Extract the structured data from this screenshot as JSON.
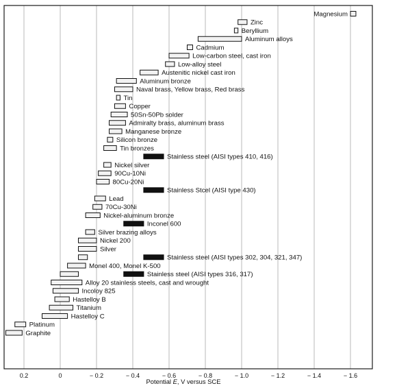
{
  "chart_data": {
    "type": "range-bar",
    "title": "",
    "xlabel_parts": [
      "Potential ",
      "E",
      ", V versus SCE"
    ],
    "x_direction": "more negative to the right",
    "xlim": [
      0.3,
      -1.7
    ],
    "x_ticks": [
      {
        "value": 0.2,
        "label": "0.2"
      },
      {
        "value": 0,
        "label": "0"
      },
      {
        "value": -0.2,
        "label": "− 0.2"
      },
      {
        "value": -0.4,
        "label": "− 0.4"
      },
      {
        "value": -0.6,
        "label": "− 0.6"
      },
      {
        "value": -0.8,
        "label": "− 0.8"
      },
      {
        "value": -1.0,
        "label": "− 1.0"
      },
      {
        "value": -1.2,
        "label": "− 1.2"
      },
      {
        "value": -1.4,
        "label": "− 1.4"
      },
      {
        "value": -1.6,
        "label": "− 1.6"
      }
    ],
    "grid": true,
    "series": [
      {
        "name": "Magnesium",
        "range": [
          -1.6,
          -1.63
        ],
        "style": "open",
        "label_side": "left"
      },
      {
        "name": "Zinc",
        "range": [
          -0.98,
          -1.03
        ],
        "style": "open"
      },
      {
        "name": "Beryllium",
        "range": [
          -0.96,
          -0.98
        ],
        "style": "open"
      },
      {
        "name": "Aluminum alloys",
        "range": [
          -0.76,
          -1.0
        ],
        "style": "open"
      },
      {
        "name": "Cadmium",
        "range": [
          -0.7,
          -0.73
        ],
        "style": "open"
      },
      {
        "name": "Low-carbon steel, cast iron",
        "range": [
          -0.6,
          -0.71
        ],
        "style": "open"
      },
      {
        "name": "Low-alloy steel",
        "range": [
          -0.58,
          -0.63
        ],
        "style": "open"
      },
      {
        "name": "Austenitic nickel cast iron",
        "range": [
          -0.44,
          -0.54
        ],
        "style": "open"
      },
      {
        "name": "Aluminum bronze",
        "range": [
          -0.31,
          -0.42
        ],
        "style": "open"
      },
      {
        "name": "Naval brass, Yellow brass, Red brass",
        "range": [
          -0.3,
          -0.4
        ],
        "style": "open"
      },
      {
        "name": "Tin",
        "range": [
          -0.31,
          -0.33
        ],
        "style": "open"
      },
      {
        "name": "Copper",
        "range": [
          -0.3,
          -0.36
        ],
        "style": "open"
      },
      {
        "name": "50Sn-50Pb solder",
        "range": [
          -0.28,
          -0.37
        ],
        "style": "open"
      },
      {
        "name": "Admiralty brass, aluminum brass",
        "range": [
          -0.27,
          -0.36
        ],
        "style": "open"
      },
      {
        "name": "Manganese bronze",
        "range": [
          -0.27,
          -0.34
        ],
        "style": "open"
      },
      {
        "name": "Silicon bronze",
        "range": [
          -0.26,
          -0.29
        ],
        "style": "open"
      },
      {
        "name": "Tin bronzes",
        "range": [
          -0.24,
          -0.31
        ],
        "style": "open"
      },
      {
        "name": "Stainless steel (AISI types 410, 416)",
        "range": [
          -0.46,
          -0.57
        ],
        "style": "solid",
        "label_side": "right"
      },
      {
        "name": "Nickel silver",
        "range": [
          -0.24,
          -0.28
        ],
        "style": "open"
      },
      {
        "name": "90Cu-10Ni",
        "range": [
          -0.21,
          -0.28
        ],
        "style": "open"
      },
      {
        "name": "80Cu-20Ni",
        "range": [
          -0.2,
          -0.27
        ],
        "style": "open"
      },
      {
        "name": "Stainless Stcel (AISI type 430)",
        "range": [
          -0.46,
          -0.57
        ],
        "style": "solid",
        "label_side": "right"
      },
      {
        "name": "Lead",
        "range": [
          -0.19,
          -0.25
        ],
        "style": "open"
      },
      {
        "name": "70Cu-30Ni",
        "range": [
          -0.18,
          -0.23
        ],
        "style": "open"
      },
      {
        "name": "Nickel-aluminum bronze",
        "range": [
          -0.14,
          -0.22
        ],
        "style": "open"
      },
      {
        "name": "Inconel 600",
        "range": [
          -0.35,
          -0.46
        ],
        "style": "solid",
        "label_side": "right"
      },
      {
        "name": "Silver brazing alloys",
        "range": [
          -0.14,
          -0.19
        ],
        "style": "open"
      },
      {
        "name": "Nickel 200",
        "range": [
          -0.1,
          -0.2
        ],
        "style": "open"
      },
      {
        "name": "Silver",
        "range": [
          -0.1,
          -0.2
        ],
        "style": "open"
      },
      {
        "name": "Stainless steel (AISI types 302, 304, 321, 347)",
        "range": [
          -0.1,
          -0.15
        ],
        "style": "open"
      },
      {
        "name": "Stainless steel (AISI types 302, 304, 321, 347)",
        "range": [
          -0.46,
          -0.57
        ],
        "style": "solid",
        "label_side": "right"
      },
      {
        "name": "Monel 400, Monel K-500",
        "range": [
          -0.04,
          -0.14
        ],
        "style": "open"
      },
      {
        "name": "Stainless steel (AISI types 316, 317)",
        "range": [
          0.0,
          -0.1
        ],
        "style": "open"
      },
      {
        "name": "Stainless steel (AISI types 316, 317)",
        "range": [
          -0.35,
          -0.46
        ],
        "style": "solid",
        "label_side": "right"
      },
      {
        "name": "Alloy 20 stainless steels, cast and wrought",
        "range": [
          0.05,
          -0.12
        ],
        "style": "open"
      },
      {
        "name": "Incoloy 825",
        "range": [
          0.04,
          -0.1
        ],
        "style": "open"
      },
      {
        "name": "Hastelloy B",
        "range": [
          0.03,
          -0.05
        ],
        "style": "open"
      },
      {
        "name": "Titanium",
        "range": [
          0.06,
          -0.07
        ],
        "style": "open"
      },
      {
        "name": "Hastelloy C",
        "range": [
          0.1,
          -0.04
        ],
        "style": "open"
      },
      {
        "name": "Platinum",
        "range": [
          0.25,
          0.19
        ],
        "style": "open"
      },
      {
        "name": "Graphite",
        "range": [
          0.3,
          0.21
        ],
        "style": "open"
      }
    ]
  }
}
